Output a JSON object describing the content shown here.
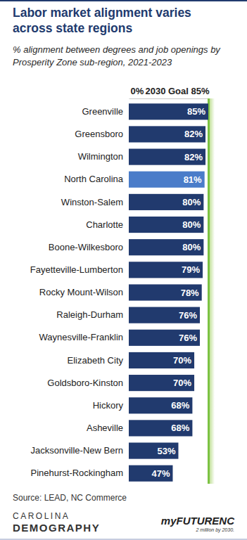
{
  "chart_data": {
    "type": "bar",
    "orientation": "horizontal",
    "title": "Labor market alignment varies across state regions",
    "subtitle": "% alignment between degrees and job openings by Prosperity Zone sub-region, 2021-2023",
    "categories": [
      "Greenville",
      "Greensboro",
      "Wilmington",
      "North Carolina",
      "Winston-Salem",
      "Charlotte",
      "Boone-Wilkesboro",
      "Fayetteville-Lumberton",
      "Rocky Mount-Wilson",
      "Raleigh-Durham",
      "Waynesville-Franklin",
      "Elizabeth City",
      "Goldsboro-Kinston",
      "Hickory",
      "Asheville",
      "Jacksonville-New Bern",
      "Pinehurst-Rockingham"
    ],
    "values": [
      85,
      82,
      82,
      81,
      80,
      80,
      80,
      79,
      78,
      76,
      76,
      70,
      70,
      68,
      68,
      53,
      47
    ],
    "value_labels": [
      "85%",
      "82%",
      "82%",
      "81%",
      "80%",
      "80%",
      "80%",
      "79%",
      "78%",
      "76%",
      "76%",
      "70%",
      "70%",
      "68%",
      "68%",
      "53%",
      "47%"
    ],
    "colors": [
      "#213a6e",
      "#213a6e",
      "#213a6e",
      "#4a7cc9",
      "#213a6e",
      "#213a6e",
      "#213a6e",
      "#213a6e",
      "#213a6e",
      "#213a6e",
      "#213a6e",
      "#213a6e",
      "#213a6e",
      "#213a6e",
      "#213a6e",
      "#213a6e",
      "#213a6e"
    ],
    "xlim": [
      0,
      85
    ],
    "xticks": [
      {
        "value": 0,
        "label": "0%"
      },
      {
        "value": 85,
        "label": "2030 Goal 85%"
      }
    ],
    "data_labels": true,
    "annotations": [
      "Source: LEAD, NC Commerce",
      "CAROLINA",
      "DEMOGRAPHY",
      "myFUTURENC",
      "2 million by 2030."
    ]
  }
}
